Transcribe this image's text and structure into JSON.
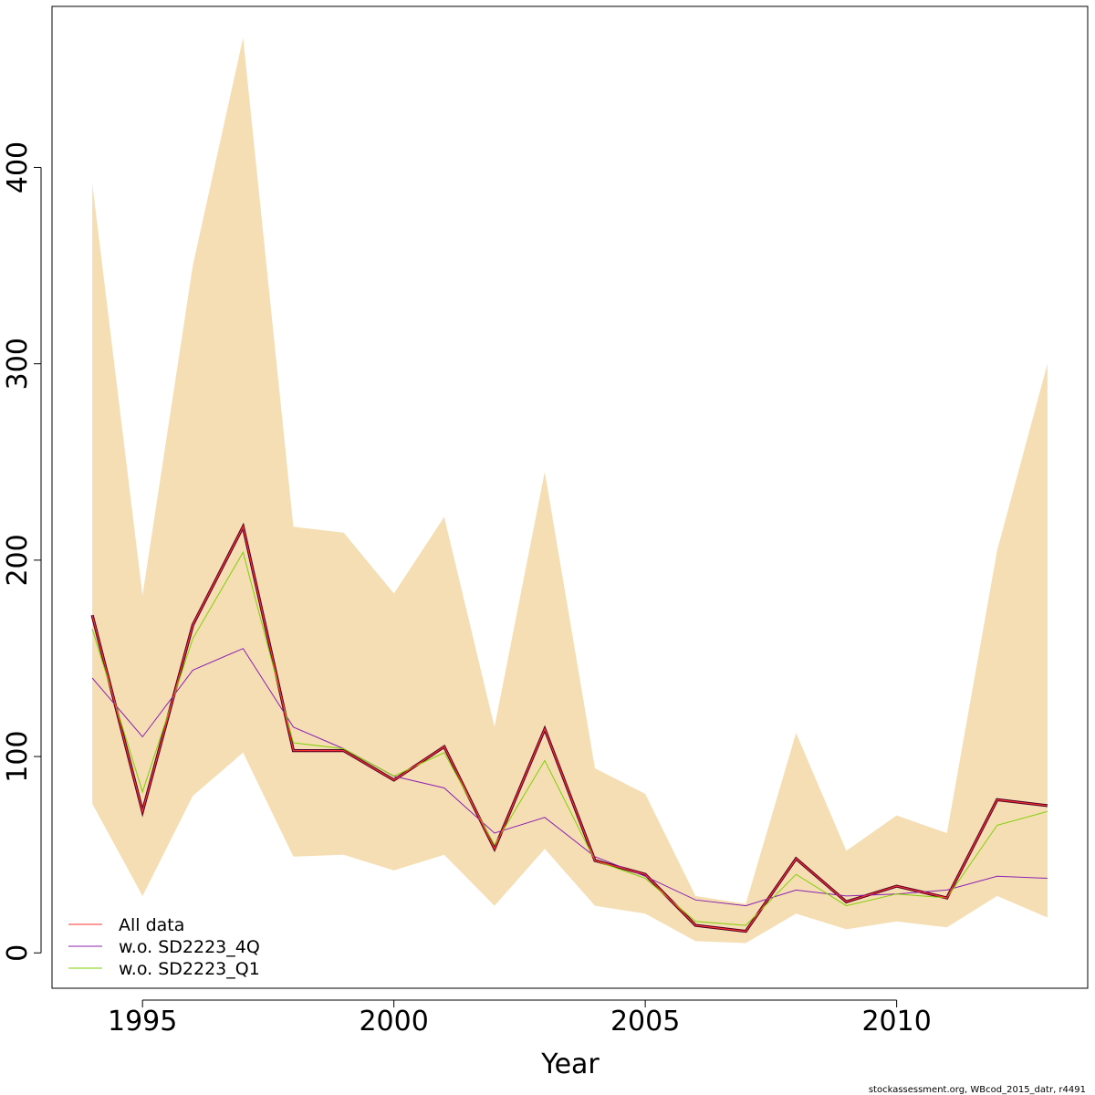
{
  "chart_data": {
    "type": "line",
    "title": "",
    "xlabel": "Year",
    "ylabel": "",
    "xlim": [
      1993.2,
      2013.8
    ],
    "ylim": [
      -18,
      482
    ],
    "xticks": [
      1995,
      2000,
      2005,
      2010
    ],
    "yticks": [
      0,
      100,
      200,
      300,
      400
    ],
    "x": [
      1994,
      1995,
      1996,
      1997,
      1998,
      1999,
      2000,
      2001,
      2002,
      2003,
      2004,
      2005,
      2006,
      2007,
      2008,
      2009,
      2010,
      2011,
      2012,
      2013
    ],
    "band": {
      "color": "#F5DEB3",
      "upper": [
        392,
        182,
        350,
        466,
        217,
        214,
        183,
        222,
        115,
        245,
        94,
        81,
        29,
        25,
        112,
        52,
        70,
        61,
        205,
        300
      ],
      "lower": [
        76,
        29,
        80,
        102,
        49,
        50,
        42,
        50,
        24,
        53,
        24,
        20,
        6,
        5,
        20,
        12,
        16,
        13,
        29,
        18
      ]
    },
    "bold_line": {
      "color": "#4B0026",
      "values": [
        172,
        72,
        167,
        217,
        103,
        103,
        88,
        105,
        53,
        114,
        47,
        40,
        14,
        11,
        48,
        26,
        34,
        28,
        78,
        75
      ]
    },
    "series": [
      {
        "name": "All data",
        "color": "#FF3030",
        "values": [
          172,
          72,
          167,
          217,
          103,
          103,
          88,
          105,
          53,
          114,
          47,
          40,
          14,
          11,
          48,
          26,
          34,
          28,
          78,
          75
        ]
      },
      {
        "name": "w.o. SD2223_4Q",
        "color": "#8B22B2",
        "values": [
          140,
          110,
          144,
          155,
          115,
          104,
          90,
          84,
          61,
          69,
          49,
          39,
          27,
          24,
          32,
          29,
          30,
          32,
          39,
          38
        ]
      },
      {
        "name": "w.o. SD2223_Q1",
        "color": "#7FD000",
        "values": [
          165,
          82,
          160,
          204,
          107,
          104,
          90,
          102,
          55,
          98,
          47,
          38,
          16,
          14,
          40,
          24,
          30,
          28,
          65,
          72
        ]
      }
    ],
    "legend_position": "bottom-left",
    "grid": false
  },
  "credit": "stockassessment.org, WBcod_2015_datr, r4491"
}
